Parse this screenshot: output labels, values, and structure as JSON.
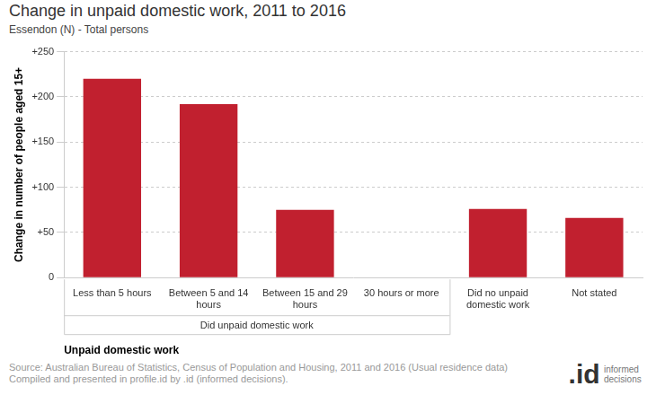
{
  "chart_data": {
    "type": "bar",
    "title": "Change in unpaid domestic work, 2011 to 2016",
    "subtitle": "Essendon (N) - Total persons",
    "y_label": "Change in number of people aged 15+",
    "x_label": "Unpaid domestic work",
    "categories": [
      "Less than 5 hours",
      "Between 5 and 14 hours",
      "Between 15 and 29 hours",
      "30 hours or more",
      "Did no unpaid domestic work",
      "Not stated"
    ],
    "values": [
      220,
      192,
      75,
      0,
      76,
      66
    ],
    "groups": [
      {
        "name": "Did unpaid domestic work",
        "categories": [
          "Less than 5 hours",
          "Between 5 and 14 hours",
          "Between 15 and 29 hours",
          "30 hours or more"
        ]
      }
    ],
    "color": "#c1202f",
    "ylim": [
      0,
      250
    ],
    "yticks": [
      0,
      {
        "value": 50,
        "label": "+50"
      },
      {
        "value": 100,
        "label": "+100"
      },
      {
        "value": 150,
        "label": "+150"
      },
      {
        "value": 200,
        "label": "+200"
      },
      {
        "value": 250,
        "label": "+250"
      }
    ],
    "grid": true,
    "source": [
      "Source: Australian Bureau of Statistics, Census of Population and Housing, 2011 and 2016 (Usual residence data)",
      "Compiled and presented in profile.id by .id (informed decisions)."
    ],
    "logo": {
      "mark": ".id",
      "text": "informed decisions"
    }
  }
}
